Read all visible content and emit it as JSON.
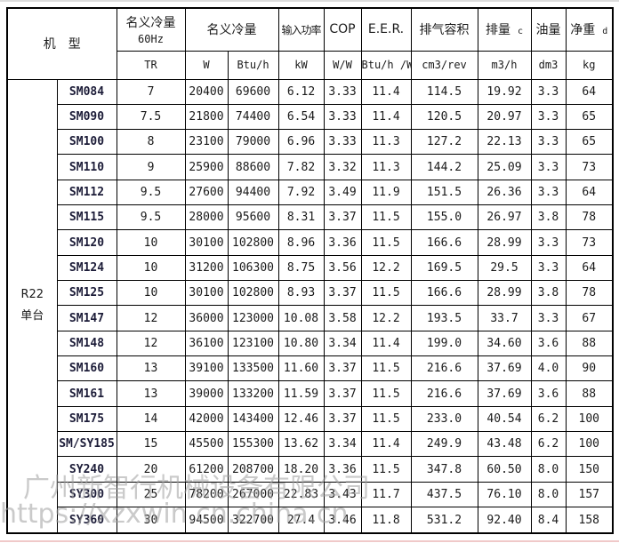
{
  "watermark": {
    "company": "广州新智行机械设备有限公司",
    "url": "https://xzxwin.cn.china.cn"
  },
  "table": {
    "header": {
      "model": "机　型",
      "nominal_60hz_line1": "名义冷量",
      "nominal_60hz_line2": "60Hz",
      "nominal": "名义冷量",
      "input_power": "输入功率",
      "cop": "COP",
      "eer": "E.E.R.",
      "displacement_volume": "排气容积",
      "displacement": {
        "label": "排量",
        "note": "c"
      },
      "oil": "油量",
      "net_weight": {
        "label": "净重",
        "note": "d"
      }
    },
    "units": {
      "tr": "TR",
      "w": "W",
      "btu_h": "Btu/h",
      "kw": "kW",
      "w_w": "W/W",
      "btu_h_w": "Btu/h /W",
      "cm3_rev": "cm3/rev",
      "m3_h": "m3/h",
      "dm3": "dm3",
      "kg": "kg"
    },
    "group_label_line1": "R22",
    "group_label_line2": "单台",
    "rows": [
      {
        "model": "SM084",
        "tr": "7",
        "w": "20400",
        "btu_h": "69600",
        "kw": "6.12",
        "cop": "3.33",
        "eer": "11.4",
        "cm3_rev": "114.5",
        "m3_h": "19.92",
        "dm3": "3.3",
        "kg": "64"
      },
      {
        "model": "SM090",
        "tr": "7.5",
        "w": "21800",
        "btu_h": "74400",
        "kw": "6.54",
        "cop": "3.33",
        "eer": "11.4",
        "cm3_rev": "120.5",
        "m3_h": "20.97",
        "dm3": "3.3",
        "kg": "65"
      },
      {
        "model": "SM100",
        "tr": "8",
        "w": "23100",
        "btu_h": "79000",
        "kw": "6.96",
        "cop": "3.33",
        "eer": "11.3",
        "cm3_rev": "127.2",
        "m3_h": "22.13",
        "dm3": "3.3",
        "kg": "65"
      },
      {
        "model": "SM110",
        "tr": "9",
        "w": "25900",
        "btu_h": "88600",
        "kw": "7.82",
        "cop": "3.32",
        "eer": "11.3",
        "cm3_rev": "144.2",
        "m3_h": "25.09",
        "dm3": "3.3",
        "kg": "73"
      },
      {
        "model": "SM112",
        "tr": "9.5",
        "w": "27600",
        "btu_h": "94400",
        "kw": "7.92",
        "cop": "3.49",
        "eer": "11.9",
        "cm3_rev": "151.5",
        "m3_h": "26.36",
        "dm3": "3.3",
        "kg": "64"
      },
      {
        "model": "SM115",
        "tr": "9.5",
        "w": "28000",
        "btu_h": "95600",
        "kw": "8.31",
        "cop": "3.37",
        "eer": "11.5",
        "cm3_rev": "155.0",
        "m3_h": "26.97",
        "dm3": "3.8",
        "kg": "78"
      },
      {
        "model": "SM120",
        "tr": "10",
        "w": "30100",
        "btu_h": "102800",
        "kw": "8.96",
        "cop": "3.36",
        "eer": "11.5",
        "cm3_rev": "166.6",
        "m3_h": "28.99",
        "dm3": "3.3",
        "kg": "73"
      },
      {
        "model": "SM124",
        "tr": "10",
        "w": "31200",
        "btu_h": "106300",
        "kw": "8.75",
        "cop": "3.56",
        "eer": "12.2",
        "cm3_rev": "169.5",
        "m3_h": "29.5",
        "dm3": "3.3",
        "kg": "64"
      },
      {
        "model": "SM125",
        "tr": "10",
        "w": "30100",
        "btu_h": "102800",
        "kw": "8.93",
        "cop": "3.37",
        "eer": "11.5",
        "cm3_rev": "166.6",
        "m3_h": "28.99",
        "dm3": "3.8",
        "kg": "78"
      },
      {
        "model": "SM147",
        "tr": "12",
        "w": "36000",
        "btu_h": "123000",
        "kw": "10.08",
        "cop": "3.58",
        "eer": "12.2",
        "cm3_rev": "193.5",
        "m3_h": "33.7",
        "dm3": "3.3",
        "kg": "67"
      },
      {
        "model": "SM148",
        "tr": "12",
        "w": "36100",
        "btu_h": "123100",
        "kw": "10.80",
        "cop": "3.34",
        "eer": "11.4",
        "cm3_rev": "199.0",
        "m3_h": "34.60",
        "dm3": "3.6",
        "kg": "88"
      },
      {
        "model": "SM160",
        "tr": "13",
        "w": "39100",
        "btu_h": "133500",
        "kw": "11.60",
        "cop": "3.37",
        "eer": "11.5",
        "cm3_rev": "216.6",
        "m3_h": "37.69",
        "dm3": "4.0",
        "kg": "90"
      },
      {
        "model": "SM161",
        "tr": "13",
        "w": "39000",
        "btu_h": "133200",
        "kw": "11.59",
        "cop": "3.37",
        "eer": "11.5",
        "cm3_rev": "216.6",
        "m3_h": "37.69",
        "dm3": "3.6",
        "kg": "88"
      },
      {
        "model": "SM175",
        "tr": "14",
        "w": "42000",
        "btu_h": "143400",
        "kw": "12.46",
        "cop": "3.37",
        "eer": "11.5",
        "cm3_rev": "233.0",
        "m3_h": "40.54",
        "dm3": "6.2",
        "kg": "100"
      },
      {
        "model": "SM/SY185",
        "tr": "15",
        "w": "45500",
        "btu_h": "155300",
        "kw": "13.62",
        "cop": "3.34",
        "eer": "11.4",
        "cm3_rev": "249.9",
        "m3_h": "43.48",
        "dm3": "6.2",
        "kg": "100"
      },
      {
        "model": "SY240",
        "tr": "20",
        "w": "61200",
        "btu_h": "208700",
        "kw": "18.20",
        "cop": "3.36",
        "eer": "11.5",
        "cm3_rev": "347.8",
        "m3_h": "60.50",
        "dm3": "8.0",
        "kg": "150"
      },
      {
        "model": "SY300",
        "tr": "25",
        "w": "78200",
        "btu_h": "267000",
        "kw": "22.83",
        "cop": "3.43",
        "eer": "11.7",
        "cm3_rev": "437.5",
        "m3_h": "76.10",
        "dm3": "8.0",
        "kg": "157"
      },
      {
        "model": "SY360",
        "tr": "30",
        "w": "94500",
        "btu_h": "322700",
        "kw": "27.4",
        "cop": "3.46",
        "eer": "11.8",
        "cm3_rev": "531.2",
        "m3_h": "92.40",
        "dm3": "8.4",
        "kg": "158"
      }
    ]
  }
}
